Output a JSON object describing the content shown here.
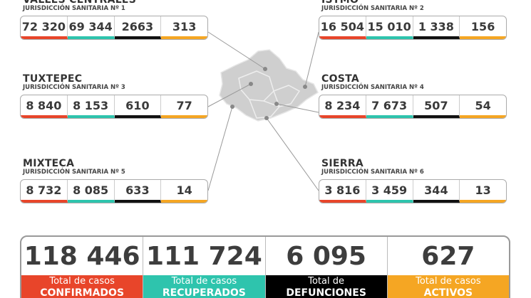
{
  "regions": [
    {
      "name": "VALLES CENTRALES",
      "jurisdiction": "JURISDICCIÓN SANITARIA Nº 1",
      "values": [
        "72 320",
        "69 344",
        "2663",
        "313"
      ]
    },
    {
      "name": "ISTMO",
      "jurisdiction": "JURISDICCIÓN SANITARIA Nº 2",
      "values": [
        "16 504",
        "15 010",
        "1 338",
        "156"
      ]
    },
    {
      "name": "TUXTEPEC",
      "jurisdiction": "JURISDICCIÓN SANITARIA Nº 3",
      "values": [
        "8 840",
        "8 153",
        "610",
        "77"
      ]
    },
    {
      "name": "COSTA",
      "jurisdiction": "JURISDICCIÓN SANITARIA Nº 4",
      "values": [
        "8 234",
        "7 673",
        "507",
        "54"
      ]
    },
    {
      "name": "MIXTECA",
      "jurisdiction": "JURISDICCIÓN SANITARIA Nº 5",
      "values": [
        "8 732",
        "8 085",
        "633",
        "14"
      ]
    },
    {
      "name": "SIERRA",
      "jurisdiction": "JURISDICCIÓN SANITARIA Nº 6",
      "values": [
        "3 816",
        "3 459",
        "344",
        "13"
      ]
    }
  ],
  "totals": [
    {
      "value": "118 446",
      "label_top": "Total de casos",
      "label_bottom": "CONFIRMADOS"
    },
    {
      "value": "111 724",
      "label_top": "Total de casos",
      "label_bottom": "RECUPERADOS"
    },
    {
      "value": "6 095",
      "label_top": "Total de",
      "label_bottom": "DEFUNCIONES"
    },
    {
      "value": "627",
      "label_top": "Total de casos",
      "label_bottom": "ACTIVOS"
    }
  ]
}
